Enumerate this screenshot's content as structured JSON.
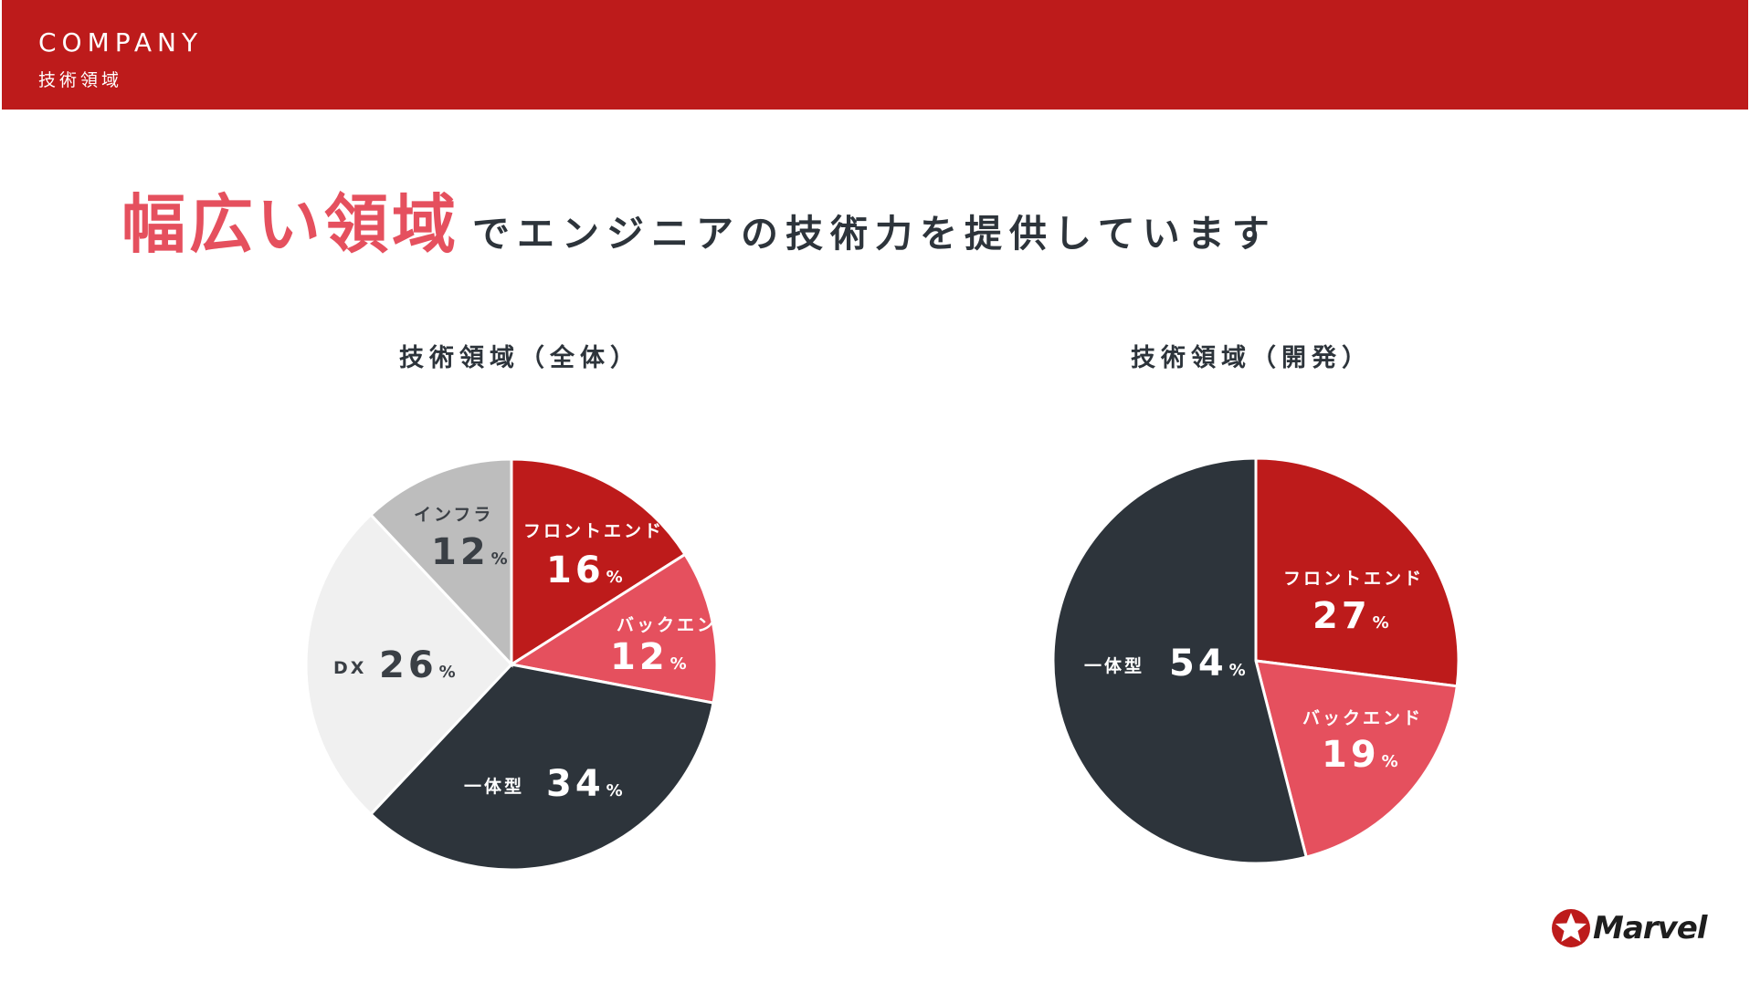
{
  "header": {
    "title": "COMPANY",
    "subtitle": "技術領域"
  },
  "headline": {
    "accent": "幅広い領域",
    "rest": "でエンジニアの技術力を提供しています"
  },
  "colors": {
    "header_red": "#bd1b1b",
    "accent_pink": "#e5505e",
    "dark": "#2d343b",
    "grey": "#bdbdbd",
    "light_grey": "#f0f0f0"
  },
  "logo": {
    "text": "Marvel",
    "icon": "star-in-circle-icon"
  },
  "chart_data": [
    {
      "type": "pie",
      "title": "技術領域（全体）",
      "unit": "%",
      "slices": [
        {
          "label": "フロントエンド",
          "value": 16,
          "color": "#bd1b1b"
        },
        {
          "label": "バックエンド",
          "value": 12,
          "color": "#e5505e"
        },
        {
          "label": "一体型",
          "value": 34,
          "color": "#2d343b"
        },
        {
          "label": "DX",
          "value": 26,
          "color": "#f0f0f0"
        },
        {
          "label": "インフラ",
          "value": 12,
          "color": "#bdbdbd"
        }
      ]
    },
    {
      "type": "pie",
      "title": "技術領域（開発）",
      "unit": "%",
      "slices": [
        {
          "label": "フロントエンド",
          "value": 27,
          "color": "#bd1b1b"
        },
        {
          "label": "バックエンド",
          "value": 19,
          "color": "#e5505e"
        },
        {
          "label": "一体型",
          "value": 54,
          "color": "#2d343b"
        }
      ]
    }
  ]
}
